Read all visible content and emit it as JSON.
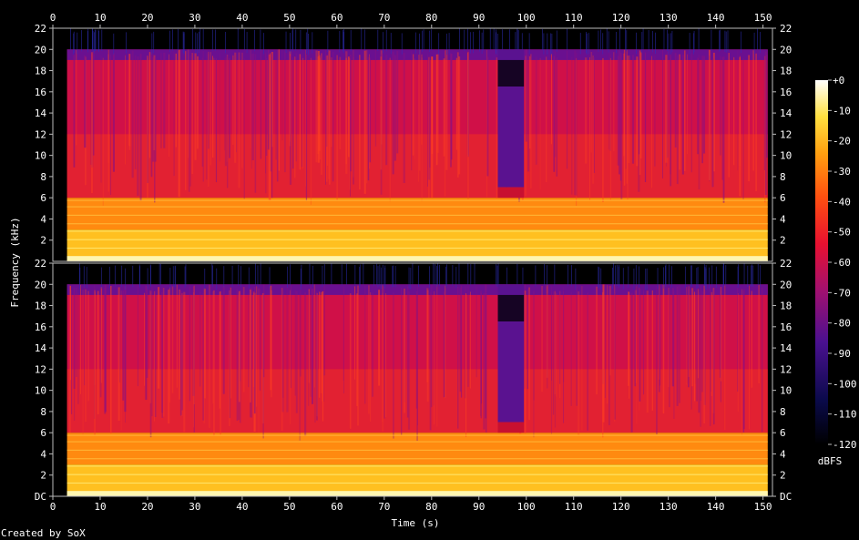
{
  "chart_data": {
    "type": "heatmap",
    "subtype": "spectrogram (2 channels)",
    "xlabel": "Time (s)",
    "ylabel": "Frequency (kHz)",
    "xlim": [
      0,
      152
    ],
    "ylim": [
      0,
      22
    ],
    "x_ticks": [
      "0",
      "10",
      "20",
      "30",
      "40",
      "50",
      "60",
      "70",
      "80",
      "90",
      "100",
      "110",
      "120",
      "130",
      "140",
      "150"
    ],
    "y_ticks_top": [
      "2",
      "4",
      "6",
      "8",
      "10",
      "12",
      "14",
      "16",
      "18",
      "20",
      "22"
    ],
    "y_ticks_bottom": [
      "DC",
      "2",
      "4",
      "6",
      "8",
      "10",
      "12",
      "14",
      "16",
      "18",
      "20",
      "22"
    ],
    "colorbar": {
      "label": "dBFS",
      "range": [
        -120,
        0
      ],
      "ticks": [
        "+0",
        "-10",
        "-20",
        "-30",
        "-40",
        "-50",
        "-60",
        "-70",
        "-80",
        "-90",
        "-100",
        "-110",
        "-120"
      ]
    },
    "channels": 2,
    "signal_time_range": [
      3,
      151
    ],
    "max_frequency_kHz": 20,
    "feature_notes": [
      "Energy spans roughly 3 s to 151 s across both channels, cut off above ~20 kHz.",
      "Low band (0–6 kHz) is bright yellow, upper band red/magenta.",
      "Quiet segment near 94–99 s where content above ~6 kHz drops to purple."
    ]
  },
  "footer": {
    "credit": "Created by SoX"
  }
}
